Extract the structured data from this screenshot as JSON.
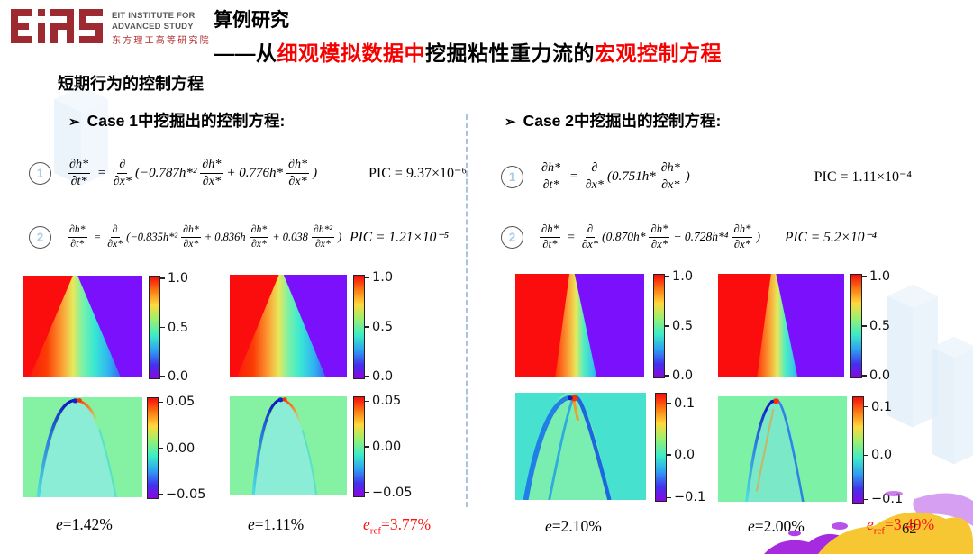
{
  "header": {
    "logo": {
      "mark": "EiAS",
      "org_line1": "EIT INSTITUTE FOR",
      "org_line2": "ADVANCED STUDY",
      "org_cn": "东方理工高等研究院"
    },
    "title_line1": "算例研究",
    "title_line2_parts": [
      {
        "text": "——从",
        "color": "#000000"
      },
      {
        "text": "细观模拟数据中",
        "color": "#f60000"
      },
      {
        "text": "挖掘粘性重力流的",
        "color": "#000000"
      },
      {
        "text": "宏观控制方程",
        "color": "#f60000"
      }
    ]
  },
  "subtitle": "短期行为的控制方程",
  "cases": [
    {
      "bullet": "➢",
      "heading": "Case 1中挖掘出的控制方程:",
      "equations": [
        {
          "num": "1",
          "tokens": [
            {
              "f": [
                "∂h*",
                "∂t*"
              ]
            },
            {
              "s": " = "
            },
            {
              "f": [
                "∂",
                "∂x*"
              ]
            },
            {
              "s": "(−0.787h*²"
            },
            {
              "f": [
                "∂h*",
                "∂x*"
              ]
            },
            {
              "s": "+ 0.776h*"
            },
            {
              "f": [
                "∂h*",
                "∂x*"
              ]
            },
            {
              "s": ")"
            }
          ],
          "pic": "PIC = 9.37×10⁻⁶"
        },
        {
          "num": "2",
          "tokens": [
            {
              "f": [
                "∂h*",
                "∂t*"
              ]
            },
            {
              "s": " = "
            },
            {
              "f": [
                "∂",
                "∂x*"
              ]
            },
            {
              "s": "(−0.835h*²"
            },
            {
              "f": [
                "∂h*",
                "∂x*"
              ]
            },
            {
              "s": "+ 0.836h"
            },
            {
              "f": [
                "∂h*",
                "∂x*"
              ]
            },
            {
              "s": "+ 0.038"
            },
            {
              "f": [
                "∂h*²",
                "∂x*"
              ]
            },
            {
              "s": ")"
            }
          ],
          "pic": "PIC = 1.21×10⁻⁵"
        }
      ],
      "panels": [
        {
          "type": "heatmap",
          "ticks": [
            "1.0",
            "0.5",
            "0.0"
          ]
        },
        {
          "type": "heatmap",
          "ticks": [
            "1.0",
            "0.5",
            "0.0"
          ]
        },
        {
          "type": "heatmap",
          "ticks": [
            "0.05",
            "0.00",
            "−0.05"
          ]
        },
        {
          "type": "heatmap",
          "ticks": [
            "0.05",
            "0.00",
            "−0.05"
          ]
        }
      ],
      "errors": [
        {
          "var": "e",
          "rest": "=1.42%"
        },
        {
          "var": "e",
          "rest": "=1.11%"
        }
      ],
      "ref_error": {
        "var": "e",
        "sub": "ref",
        "rest": "=3.77%"
      }
    },
    {
      "bullet": "➢",
      "heading": "Case 2中挖掘出的控制方程:",
      "equations": [
        {
          "num": "1",
          "tokens": [
            {
              "f": [
                "∂h*",
                "∂t*"
              ]
            },
            {
              "s": " = "
            },
            {
              "f": [
                "∂",
                "∂x*"
              ]
            },
            {
              "s": "(0.751h*"
            },
            {
              "f": [
                "∂h*",
                "∂x*"
              ]
            },
            {
              "s": ")"
            }
          ],
          "pic": "PIC = 1.11×10⁻⁴"
        },
        {
          "num": "2",
          "tokens": [
            {
              "f": [
                "∂h*",
                "∂t*"
              ]
            },
            {
              "s": " = "
            },
            {
              "f": [
                "∂",
                "∂x*"
              ]
            },
            {
              "s": "(0.870h*"
            },
            {
              "f": [
                "∂h*",
                "∂x*"
              ]
            },
            {
              "s": "− 0.728h*⁴"
            },
            {
              "f": [
                "∂h*",
                "∂x*"
              ]
            },
            {
              "s": ")"
            }
          ],
          "pic": "PIC = 5.2×10⁻⁴"
        }
      ],
      "panels": [
        {
          "type": "heatmap",
          "ticks": [
            "1.0",
            "0.5",
            "0.0"
          ]
        },
        {
          "type": "heatmap",
          "ticks": [
            "1.0",
            "0.5",
            "0.0"
          ]
        },
        {
          "type": "heatmap",
          "ticks": [
            "0.1",
            "0.0",
            "−0.1"
          ]
        },
        {
          "type": "heatmap",
          "ticks": [
            "0.1",
            "0.0",
            "−0.1"
          ]
        }
      ],
      "errors": [
        {
          "var": "e",
          "rest": "=2.10%"
        },
        {
          "var": "e",
          "rest": "=2.00%"
        }
      ],
      "ref_error": {
        "var": "e",
        "sub": "ref",
        "rest": "=3.49%"
      }
    }
  ],
  "page_number": "62",
  "colors": {
    "title_accent": "#f60000",
    "ref_error": "#fb1410",
    "logo_maroon": "#9d2a31",
    "circle_number_blue": "#a6cdea",
    "divider_blue": "#abc3dc"
  }
}
